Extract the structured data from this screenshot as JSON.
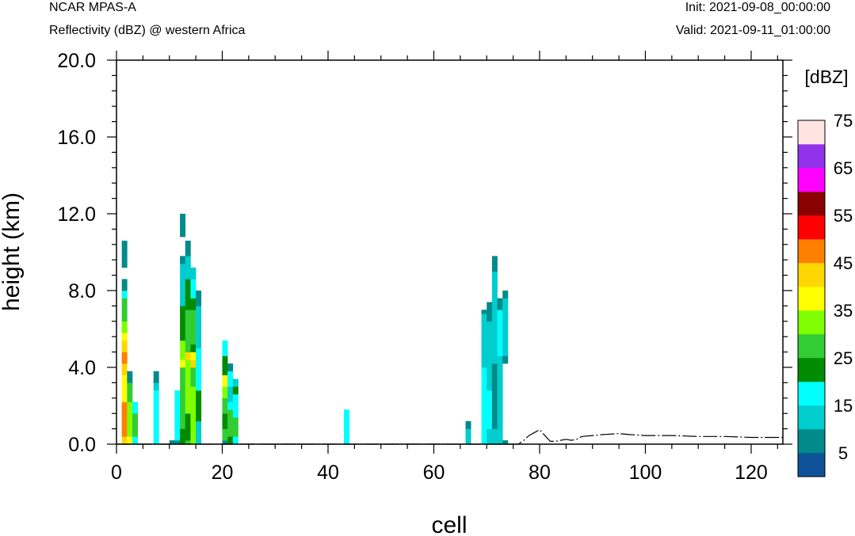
{
  "header": {
    "model": "NCAR MPAS-A",
    "field": "Reflectivity (dBZ) @ western Africa",
    "init": "Init: 2021-09-08_00:00:00",
    "valid": "Valid: 2021-09-11_01:00:00"
  },
  "chart_data": {
    "type": "heatmap",
    "xlabel": "cell",
    "ylabel": "height (km)",
    "xlim": [
      0,
      126
    ],
    "ylim": [
      0,
      20
    ],
    "x_ticks": [
      0,
      20,
      40,
      60,
      80,
      100,
      120
    ],
    "x_tick_labels": [
      "0",
      "20",
      "40",
      "60",
      "80",
      "100",
      "120"
    ],
    "y_ticks": [
      0,
      4,
      8,
      12,
      16,
      20
    ],
    "y_tick_labels": [
      "0.0",
      "4.0",
      "8.0",
      "12.0",
      "16.0",
      "20.0"
    ],
    "colorbar": {
      "unit_label": "[dBZ]",
      "levels": [
        0,
        5,
        10,
        15,
        20,
        25,
        30,
        35,
        40,
        45,
        50,
        55,
        60,
        65,
        70,
        75
      ],
      "tick_labels": [
        "5",
        "15",
        "25",
        "35",
        "45",
        "55",
        "65",
        "75"
      ],
      "colors": [
        "#0f5196",
        "#008a8a",
        "#00cdcd",
        "#00ffff",
        "#008b00",
        "#32cd32",
        "#7fff00",
        "#ffff00",
        "#ffd700",
        "#ff7f00",
        "#ff0000",
        "#8b0000",
        "#ff00ff",
        "#9132ea",
        "#ffe4e1"
      ]
    },
    "column_width_cells": 1,
    "columns": [
      {
        "x": 1,
        "segments": [
          [
            0,
            0.4,
            40
          ],
          [
            0.4,
            2.2,
            45
          ],
          [
            2.2,
            3.6,
            35
          ],
          [
            3.6,
            4.2,
            40
          ],
          [
            4.2,
            4.8,
            45
          ],
          [
            4.8,
            5.4,
            40
          ],
          [
            5.4,
            5.8,
            35
          ],
          [
            5.8,
            6.4,
            30
          ],
          [
            6.4,
            7.6,
            25
          ],
          [
            7.6,
            8.0,
            15
          ],
          [
            8.0,
            8.6,
            5
          ],
          [
            9.2,
            10.6,
            5
          ]
        ]
      },
      {
        "x": 2,
        "segments": [
          [
            0,
            0.4,
            35
          ],
          [
            0.4,
            2.2,
            30
          ],
          [
            2.2,
            3.2,
            25
          ],
          [
            3.2,
            3.8,
            5
          ]
        ]
      },
      {
        "x": 3,
        "segments": [
          [
            0,
            0.4,
            15
          ],
          [
            0.4,
            1.6,
            25
          ],
          [
            1.6,
            2.2,
            15
          ]
        ]
      },
      {
        "x": 7,
        "segments": [
          [
            0,
            2.8,
            15
          ],
          [
            2.8,
            3.2,
            10
          ],
          [
            3.2,
            3.8,
            5
          ]
        ]
      },
      {
        "x": 10,
        "segments": [
          [
            0,
            0.2,
            5
          ]
        ]
      },
      {
        "x": 11,
        "segments": [
          [
            0,
            0.2,
            5
          ],
          [
            0.2,
            2.8,
            15
          ]
        ]
      },
      {
        "x": 12,
        "segments": [
          [
            0,
            0.8,
            20
          ],
          [
            0.8,
            4.0,
            25
          ],
          [
            4.0,
            4.4,
            35
          ],
          [
            4.4,
            5.4,
            30
          ],
          [
            5.4,
            7.2,
            20
          ],
          [
            7.2,
            9.4,
            10
          ],
          [
            9.4,
            9.8,
            5
          ],
          [
            10.8,
            12.0,
            5
          ]
        ]
      },
      {
        "x": 13,
        "segments": [
          [
            0,
            0.2,
            25
          ],
          [
            0.2,
            1.6,
            20
          ],
          [
            1.6,
            4.4,
            30
          ],
          [
            4.4,
            4.8,
            40
          ],
          [
            4.8,
            7.0,
            25
          ],
          [
            7.0,
            8.6,
            20
          ],
          [
            8.6,
            9.8,
            10
          ],
          [
            9.8,
            10.6,
            5
          ]
        ]
      },
      {
        "x": 14,
        "segments": [
          [
            0,
            3.0,
            30
          ],
          [
            3.0,
            4.0,
            25
          ],
          [
            4.0,
            4.4,
            40
          ],
          [
            4.4,
            4.8,
            35
          ],
          [
            4.8,
            5.2,
            20
          ],
          [
            5.2,
            7.0,
            25
          ],
          [
            7.0,
            7.6,
            20
          ],
          [
            7.6,
            8.6,
            15
          ],
          [
            8.6,
            9.2,
            10
          ]
        ]
      },
      {
        "x": 15,
        "segments": [
          [
            0,
            1.2,
            10
          ],
          [
            1.2,
            2.8,
            20
          ],
          [
            2.8,
            5.0,
            15
          ],
          [
            5.0,
            7.2,
            10
          ],
          [
            7.2,
            8.0,
            5
          ]
        ]
      },
      {
        "x": 20,
        "segments": [
          [
            0,
            0.2,
            5
          ],
          [
            0.2,
            0.8,
            25
          ],
          [
            0.8,
            1.6,
            20
          ],
          [
            1.6,
            2.4,
            25
          ],
          [
            2.4,
            3.0,
            30
          ],
          [
            3.0,
            3.6,
            35
          ],
          [
            3.6,
            4.6,
            20
          ],
          [
            4.6,
            5.4,
            15
          ]
        ]
      },
      {
        "x": 21,
        "segments": [
          [
            0,
            0.4,
            20
          ],
          [
            0.4,
            1.8,
            25
          ],
          [
            1.8,
            2.2,
            15
          ],
          [
            2.2,
            3.0,
            10
          ],
          [
            3.0,
            3.8,
            15
          ],
          [
            3.8,
            4.2,
            5
          ]
        ]
      },
      {
        "x": 22,
        "segments": [
          [
            0,
            0.4,
            15
          ],
          [
            0.4,
            1.4,
            25
          ],
          [
            1.4,
            2.6,
            15
          ],
          [
            2.6,
            3.0,
            20
          ],
          [
            3.0,
            3.4,
            10
          ]
        ]
      },
      {
        "x": 43,
        "segments": [
          [
            0,
            1.8,
            15
          ]
        ]
      },
      {
        "x": 66,
        "segments": [
          [
            0,
            0.8,
            10
          ],
          [
            0.8,
            1.2,
            5
          ]
        ]
      },
      {
        "x": 69,
        "segments": [
          [
            0,
            4.0,
            15
          ],
          [
            4.0,
            6.0,
            10
          ],
          [
            6.0,
            6.8,
            10
          ],
          [
            6.8,
            7.0,
            5
          ]
        ]
      },
      {
        "x": 70,
        "segments": [
          [
            0,
            0.8,
            10
          ],
          [
            0.8,
            2.8,
            15
          ],
          [
            2.8,
            6.4,
            10
          ],
          [
            6.4,
            7.4,
            5
          ]
        ]
      },
      {
        "x": 71,
        "segments": [
          [
            0,
            0.8,
            10
          ],
          [
            0.8,
            4.2,
            5
          ],
          [
            4.2,
            9.0,
            10
          ],
          [
            9.0,
            9.8,
            5
          ]
        ]
      },
      {
        "x": 72,
        "segments": [
          [
            0,
            4.6,
            10
          ],
          [
            4.6,
            7.0,
            15
          ],
          [
            7.0,
            7.6,
            5
          ]
        ]
      },
      {
        "x": 73,
        "segments": [
          [
            0,
            0.2,
            5
          ],
          [
            4.2,
            4.6,
            5
          ],
          [
            4.6,
            7.6,
            10
          ],
          [
            7.6,
            8.0,
            5
          ]
        ]
      }
    ],
    "terrain_line": {
      "x": [
        0,
        76,
        77,
        78,
        79,
        80,
        81,
        82,
        83,
        84,
        85,
        86,
        87,
        88,
        90,
        92,
        95,
        97,
        100,
        102,
        105,
        110,
        115,
        120,
        126
      ],
      "y": [
        0.0,
        0.0,
        0.2,
        0.45,
        0.6,
        0.75,
        0.45,
        0.15,
        0.15,
        0.2,
        0.25,
        0.2,
        0.25,
        0.4,
        0.45,
        0.5,
        0.55,
        0.5,
        0.45,
        0.45,
        0.45,
        0.4,
        0.4,
        0.35,
        0.35
      ]
    }
  }
}
